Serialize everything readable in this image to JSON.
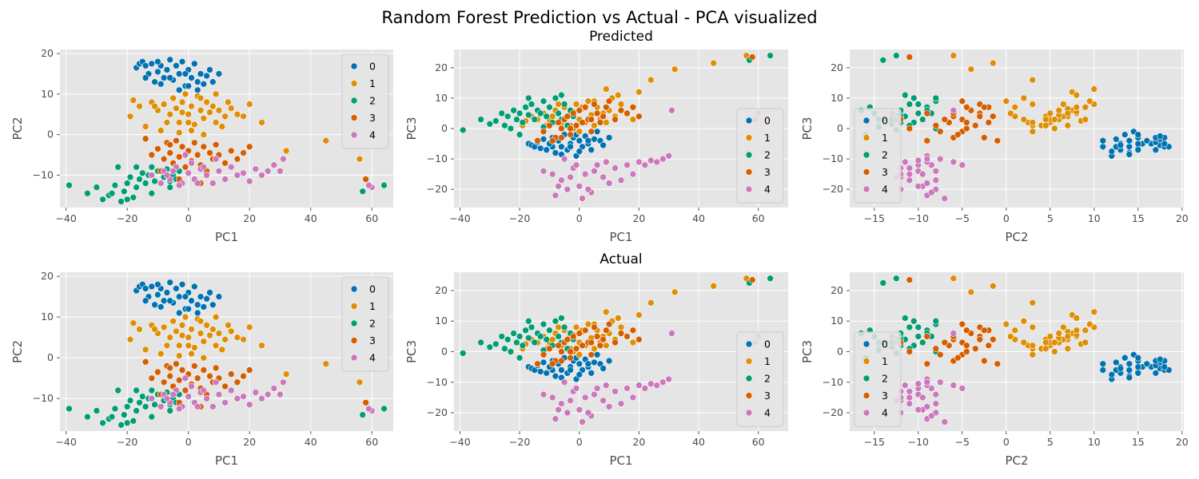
{
  "figure": {
    "title": "Random Forest Prediction vs Actual - PCA visualized",
    "row_titles": [
      "Predicted",
      "Actual"
    ]
  },
  "style": {
    "panel_background": "#e5e5e5",
    "grid_color": "#ffffff",
    "marker_edge": "#ffffff",
    "palette": [
      "#0173b2",
      "#de8f05",
      "#029e73",
      "#d55e00",
      "#cc78bc"
    ]
  },
  "chart_data": [
    {
      "type": "scatter",
      "row": "Predicted",
      "xlabel": "PC1",
      "ylabel": "PC2",
      "xkey": "pc1",
      "ykey": "pc2",
      "xlim": [
        -42,
        67
      ],
      "ylim": [
        -18,
        21
      ],
      "xticks": [
        -40,
        -20,
        0,
        20,
        40,
        60
      ],
      "yticks": [
        -10,
        0,
        10,
        20
      ],
      "legend_loc": "upper right",
      "grid": true,
      "legend": [
        "0",
        "1",
        "2",
        "3",
        "4"
      ]
    },
    {
      "type": "scatter",
      "row": "Predicted",
      "xlabel": "PC1",
      "ylabel": "PC3",
      "xkey": "pc1",
      "ykey": "pc3",
      "xlim": [
        -42,
        70
      ],
      "ylim": [
        -26,
        26
      ],
      "xticks": [
        -40,
        -20,
        0,
        20,
        40,
        60
      ],
      "yticks": [
        -20,
        -10,
        0,
        10,
        20
      ],
      "legend_loc": "lower right",
      "grid": true,
      "legend": [
        "0",
        "1",
        "2",
        "3",
        "4"
      ]
    },
    {
      "type": "scatter",
      "row": "Predicted",
      "xlabel": "PC2",
      "ylabel": "PC3",
      "xkey": "pc2",
      "ykey": "pc3",
      "xlim": [
        -17.8,
        20.2
      ],
      "ylim": [
        -26,
        26
      ],
      "xticks": [
        -15,
        -10,
        -5,
        0,
        5,
        10,
        15,
        20
      ],
      "yticks": [
        -20,
        -10,
        0,
        10,
        20
      ],
      "legend_loc": "lower left",
      "grid": true,
      "legend": [
        "0",
        "1",
        "2",
        "3",
        "4"
      ]
    },
    {
      "type": "scatter",
      "row": "Actual",
      "xlabel": "PC1",
      "ylabel": "PC2",
      "xkey": "pc1",
      "ykey": "pc2",
      "xlim": [
        -42,
        67
      ],
      "ylim": [
        -18,
        21
      ],
      "xticks": [
        -40,
        -20,
        0,
        20,
        40,
        60
      ],
      "yticks": [
        -10,
        0,
        10,
        20
      ],
      "legend_loc": "upper right",
      "grid": true,
      "legend": [
        "0",
        "1",
        "2",
        "3",
        "4"
      ]
    },
    {
      "type": "scatter",
      "row": "Actual",
      "xlabel": "PC1",
      "ylabel": "PC3",
      "xkey": "pc1",
      "ykey": "pc3",
      "xlim": [
        -42,
        70
      ],
      "ylim": [
        -26,
        26
      ],
      "xticks": [
        -40,
        -20,
        0,
        20,
        40,
        60
      ],
      "yticks": [
        -20,
        -10,
        0,
        10,
        20
      ],
      "legend_loc": "lower right",
      "grid": true,
      "legend": [
        "0",
        "1",
        "2",
        "3",
        "4"
      ]
    },
    {
      "type": "scatter",
      "row": "Actual",
      "xlabel": "PC2",
      "ylabel": "PC3",
      "xkey": "pc2",
      "ykey": "pc3",
      "xlim": [
        -17.8,
        20.2
      ],
      "ylim": [
        -26,
        26
      ],
      "xticks": [
        -15,
        -10,
        -5,
        0,
        5,
        10,
        15,
        20
      ],
      "yticks": [
        -20,
        -10,
        0,
        10,
        20
      ],
      "legend_loc": "lower left",
      "grid": true,
      "legend": [
        "0",
        "1",
        "2",
        "3",
        "4"
      ]
    }
  ],
  "point_data": {
    "fields": [
      "pc1",
      "pc2",
      "pc3",
      "class"
    ],
    "points": [
      [
        -17,
        16.5,
        -5,
        0
      ],
      [
        -16,
        17.5,
        -5.5,
        0
      ],
      [
        -15,
        18,
        -6,
        0
      ],
      [
        -14,
        17,
        -4.5,
        0
      ],
      [
        -13,
        15,
        -6.5,
        0
      ],
      [
        -12,
        17.5,
        -3.5,
        0
      ],
      [
        -11,
        13,
        -7,
        0
      ],
      [
        -10,
        15.5,
        -5,
        0
      ],
      [
        -9,
        17,
        -3,
        0
      ],
      [
        -8,
        14,
        -8,
        0
      ],
      [
        -7,
        16,
        -4,
        0
      ],
      [
        -6,
        18.5,
        -6,
        0
      ],
      [
        -5,
        13.5,
        -2,
        0
      ],
      [
        -4,
        17,
        -7,
        0
      ],
      [
        -3,
        15,
        -5,
        0
      ],
      [
        -2,
        18,
        -3,
        0
      ],
      [
        -1,
        12,
        -9,
        0
      ],
      [
        0,
        16,
        -4,
        0
      ],
      [
        1,
        14,
        -6,
        0
      ],
      [
        2,
        17.5,
        -2.5,
        0
      ],
      [
        3,
        13,
        -5,
        0
      ],
      [
        4,
        15,
        -7,
        0
      ],
      [
        5,
        12.5,
        -3.5,
        0
      ],
      [
        6,
        14.5,
        -1,
        0
      ],
      [
        7,
        16,
        -4,
        0
      ],
      [
        -9,
        12.5,
        -6,
        0
      ],
      [
        -6,
        14,
        -8.5,
        0
      ],
      [
        -3,
        11,
        -6,
        0
      ],
      [
        0,
        12,
        -7.5,
        0
      ],
      [
        3,
        11,
        -4,
        0
      ],
      [
        8,
        13,
        -5.5,
        0
      ],
      [
        10,
        15,
        -3,
        0
      ],
      [
        -14,
        14,
        -4,
        0
      ],
      [
        -10,
        18,
        -5,
        0
      ],
      [
        -1,
        15,
        -2,
        0
      ],
      [
        -18,
        8.5,
        2.5,
        1
      ],
      [
        -16,
        7,
        4,
        1
      ],
      [
        -12,
        8,
        5,
        1
      ],
      [
        -10,
        6,
        3,
        1
      ],
      [
        -8,
        7.5,
        6,
        1
      ],
      [
        -6,
        5,
        2,
        1
      ],
      [
        -5,
        9,
        7,
        1
      ],
      [
        -4,
        6.5,
        4,
        1
      ],
      [
        -3,
        3,
        1,
        1
      ],
      [
        -2,
        8,
        5.5,
        1
      ],
      [
        -1,
        10,
        8,
        1
      ],
      [
        0,
        5,
        3,
        1
      ],
      [
        1,
        7,
        6.5,
        1
      ],
      [
        2,
        2.5,
        2,
        1
      ],
      [
        3,
        9.5,
        9,
        1
      ],
      [
        4,
        6,
        4.5,
        1
      ],
      [
        5,
        4,
        1,
        1
      ],
      [
        6,
        8,
        7,
        1
      ],
      [
        7,
        5.5,
        3,
        1
      ],
      [
        8,
        7,
        5,
        1
      ],
      [
        9,
        3,
        2,
        1
      ],
      [
        10,
        6,
        6,
        1
      ],
      [
        12,
        4.5,
        4,
        1
      ],
      [
        14,
        6.5,
        8,
        1
      ],
      [
        16,
        5,
        5,
        1
      ],
      [
        18,
        4.5,
        3,
        1
      ],
      [
        20,
        7.5,
        12,
        1
      ],
      [
        24,
        3,
        16,
        1
      ],
      [
        32,
        -4,
        19.5,
        1
      ],
      [
        45,
        -1.5,
        21.5,
        1
      ],
      [
        56,
        -6,
        24,
        1
      ],
      [
        -19,
        4.5,
        1,
        1
      ],
      [
        -14,
        2,
        3,
        1
      ],
      [
        -9,
        1,
        4,
        1
      ],
      [
        -7,
        3,
        8,
        1
      ],
      [
        -3,
        0.5,
        5,
        1
      ],
      [
        1,
        1,
        7,
        1
      ],
      [
        5,
        0,
        9,
        1
      ],
      [
        9,
        10,
        13,
        1
      ],
      [
        11,
        2,
        10,
        1
      ],
      [
        13,
        8,
        11,
        1
      ],
      [
        -2,
        5.5,
        0,
        1
      ],
      [
        4,
        9,
        3,
        1
      ],
      [
        -11,
        7,
        1,
        1
      ],
      [
        0,
        3,
        -1,
        1
      ],
      [
        -39,
        -12.5,
        -0.5,
        2
      ],
      [
        -33,
        -14.5,
        3,
        2
      ],
      [
        -30,
        -13,
        1.5,
        2
      ],
      [
        -28,
        -16,
        2.5,
        2
      ],
      [
        -26,
        -15,
        5,
        2
      ],
      [
        -24,
        -12.5,
        4,
        2
      ],
      [
        -23,
        -8,
        0,
        2
      ],
      [
        -22,
        -16.5,
        6,
        2
      ],
      [
        -21,
        -14,
        3,
        2
      ],
      [
        -20,
        -12,
        5,
        2
      ],
      [
        -19,
        -10.5,
        2,
        2
      ],
      [
        -18,
        -15.5,
        7,
        2
      ],
      [
        -17,
        -13,
        4.5,
        2
      ],
      [
        -16,
        -11,
        8,
        2
      ],
      [
        -15,
        -9.5,
        3,
        2
      ],
      [
        -14,
        -12,
        6,
        2
      ],
      [
        -13,
        -10,
        5,
        2
      ],
      [
        -12,
        -8,
        9,
        2
      ],
      [
        -11,
        -11.5,
        4,
        2
      ],
      [
        -10,
        -9,
        7,
        2
      ],
      [
        -9,
        -12,
        2,
        2
      ],
      [
        -8,
        -10.5,
        10,
        2
      ],
      [
        -7,
        -8.5,
        5,
        2
      ],
      [
        -6,
        -13,
        3,
        2
      ],
      [
        -5,
        -10,
        8,
        2
      ],
      [
        -4,
        -11,
        1,
        2
      ],
      [
        -3,
        -9,
        6,
        2
      ],
      [
        -2,
        -12,
        4,
        2
      ],
      [
        -25,
        -14.5,
        1,
        2
      ],
      [
        -20,
        -16,
        -2,
        2
      ],
      [
        -17,
        -8,
        10,
        2
      ],
      [
        -12,
        -14.5,
        0.5,
        2
      ],
      [
        57,
        -14,
        22.5,
        2
      ],
      [
        64,
        -12.5,
        24,
        2
      ],
      [
        -6,
        -11.5,
        11,
        2
      ],
      [
        -14,
        -1,
        -4,
        3
      ],
      [
        -12,
        -5,
        -1,
        3
      ],
      [
        -10,
        -3.5,
        1,
        3
      ],
      [
        -8,
        -6,
        -3,
        3
      ],
      [
        -7,
        -2,
        2,
        3
      ],
      [
        -6,
        -4.5,
        0,
        3
      ],
      [
        -5,
        -7,
        3,
        3
      ],
      [
        -4,
        -1.5,
        4,
        3
      ],
      [
        -3,
        -5.5,
        -2,
        3
      ],
      [
        -2,
        -3,
        5,
        3
      ],
      [
        -1,
        -8,
        1,
        3
      ],
      [
        0,
        -4,
        6,
        3
      ],
      [
        1,
        -6.5,
        2,
        3
      ],
      [
        2,
        -2,
        7,
        3
      ],
      [
        3,
        -5,
        3,
        3
      ],
      [
        4,
        -7.5,
        -1,
        3
      ],
      [
        5,
        -3,
        8,
        3
      ],
      [
        6,
        -9,
        5,
        3
      ],
      [
        7,
        -4.5,
        2,
        3
      ],
      [
        8,
        -6,
        4,
        3
      ],
      [
        9,
        -2.5,
        7,
        3
      ],
      [
        10,
        -5,
        9,
        3
      ],
      [
        12,
        -7,
        3,
        3
      ],
      [
        14,
        -4,
        6,
        3
      ],
      [
        16,
        -6,
        5,
        3
      ],
      [
        18,
        -4.5,
        7,
        3
      ],
      [
        20,
        -3,
        4,
        3
      ],
      [
        -9,
        -9,
        -4,
        3
      ],
      [
        -3,
        -11,
        0,
        3
      ],
      [
        4,
        -12,
        3,
        3
      ],
      [
        58,
        -11,
        23.5,
        3
      ],
      [
        -6,
        -2.5,
        -3,
        3
      ],
      [
        -12,
        -10,
        -14,
        4
      ],
      [
        -8,
        -9,
        -22,
        4
      ],
      [
        -6,
        -11,
        -17,
        4
      ],
      [
        -4,
        -8,
        -20,
        4
      ],
      [
        -2,
        -12,
        -13,
        4
      ],
      [
        0,
        -9.5,
        -19,
        4
      ],
      [
        2,
        -11,
        -15,
        4
      ],
      [
        4,
        -8.5,
        -21,
        4
      ],
      [
        6,
        -10,
        -12,
        4
      ],
      [
        8,
        -12,
        -16,
        4
      ],
      [
        10,
        -9,
        -18,
        4
      ],
      [
        12,
        -11,
        -13,
        4
      ],
      [
        14,
        -8,
        -17,
        4
      ],
      [
        16,
        -10,
        -12,
        4
      ],
      [
        18,
        -9.5,
        -15,
        4
      ],
      [
        20,
        -11.5,
        -11,
        4
      ],
      [
        22,
        -8.5,
        -12,
        4
      ],
      [
        24,
        -10,
        -10.5,
        4
      ],
      [
        26,
        -9,
        -11,
        4
      ],
      [
        28,
        -7.5,
        -10,
        4
      ],
      [
        30,
        -9,
        -9,
        4
      ],
      [
        31,
        -6,
        6,
        4
      ],
      [
        -3,
        -12.5,
        -16,
        4
      ],
      [
        1,
        -7,
        -23,
        4
      ],
      [
        5,
        -8,
        -14,
        4
      ],
      [
        9,
        -6,
        -11,
        4
      ],
      [
        -7,
        -10,
        -19,
        4
      ],
      [
        -9,
        -12,
        -15,
        4
      ],
      [
        -5,
        -9,
        -10,
        4
      ],
      [
        60,
        -13,
        5,
        4
      ],
      [
        59,
        -12.5,
        3,
        4
      ],
      [
        -1,
        -5,
        -12,
        4
      ],
      [
        3,
        -12,
        -20,
        4
      ]
    ]
  }
}
